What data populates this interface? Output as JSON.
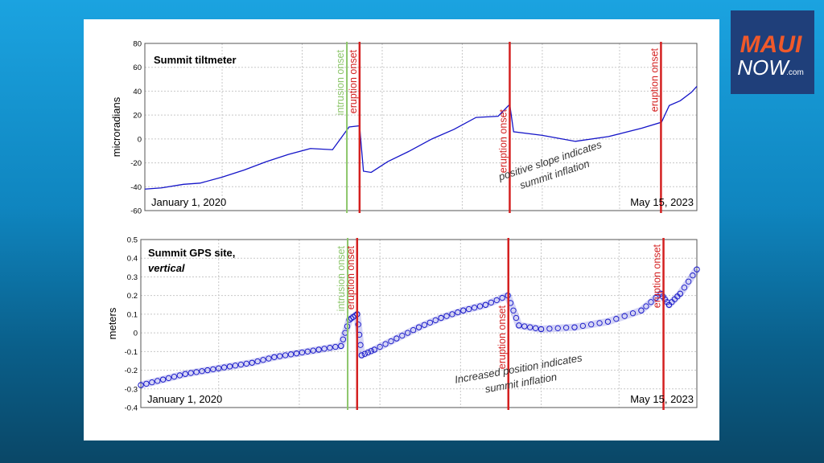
{
  "logo": {
    "line1": "MAUI",
    "line2": "NOW",
    "suffix": ".com",
    "colors": {
      "bg": "#1f3f7a",
      "accent": "#f0592a",
      "text": "#ffffff"
    }
  },
  "colors": {
    "series": "#1414c8",
    "eruption": "#d42020",
    "intrusion": "#8cc66a",
    "grid": "#c8c8c8"
  },
  "chart_data": [
    {
      "type": "line",
      "title": "Summit tiltmeter",
      "ylabel": "microradians",
      "ylim": [
        -60,
        80
      ],
      "yticks": [
        "-60",
        "-40",
        "-20",
        "0",
        "20",
        "40",
        "60",
        "80"
      ],
      "grid": true,
      "x_start_label": "January 1, 2020",
      "x_end_label": "May 15, 2023",
      "series": [
        {
          "x": [
            0,
            0.03,
            0.07,
            0.1,
            0.14,
            0.18,
            0.22,
            0.26,
            0.3,
            0.34,
            0.37,
            0.389,
            0.396,
            0.41,
            0.44,
            0.48,
            0.52,
            0.56,
            0.6,
            0.64,
            0.661,
            0.668,
            0.72,
            0.78,
            0.84,
            0.9,
            0.936,
            0.95,
            0.97,
            0.99,
            1.0
          ],
          "y": [
            -42,
            -41,
            -38,
            -37,
            -32,
            -26,
            -19,
            -13,
            -8,
            -9,
            10,
            11,
            -27,
            -28,
            -19,
            -10,
            0,
            8,
            18,
            19,
            29,
            6,
            3,
            -2,
            2,
            9,
            14,
            28,
            32,
            39,
            44
          ]
        }
      ],
      "events": [
        {
          "label": "intrusion onset",
          "x": 0.366,
          "kind": "intrusion"
        },
        {
          "label": "eruption onset",
          "x": 0.389,
          "kind": "eruption"
        },
        {
          "label": "eruption onset",
          "x": 0.661,
          "kind": "eruption"
        },
        {
          "label": "eruption onset",
          "x": 0.935,
          "kind": "eruption"
        }
      ],
      "annotation": [
        "positive slope indicates",
        "summit inflation"
      ]
    },
    {
      "type": "scatter",
      "title_line1": "Summit GPS site,",
      "title_line2": "vertical",
      "ylabel": "meters",
      "ylim": [
        -0.4,
        0.5
      ],
      "yticks": [
        "-0.4",
        "-0.3",
        "-0.2",
        "-0.1",
        "0",
        "0.1",
        "0.2",
        "0.3",
        "0.4",
        "0.5"
      ],
      "grid": true,
      "x_start_label": "January 1, 2020",
      "x_end_label": "May 15, 2023",
      "series": [
        {
          "x": [
            0,
            0.04,
            0.08,
            0.12,
            0.16,
            0.2,
            0.24,
            0.28,
            0.32,
            0.36,
            0.375,
            0.389,
            0.397,
            0.42,
            0.46,
            0.5,
            0.54,
            0.58,
            0.62,
            0.66,
            0.68,
            0.72,
            0.78,
            0.84,
            0.9,
            0.935,
            0.95,
            0.97,
            1.0
          ],
          "y": [
            -0.28,
            -0.25,
            -0.22,
            -0.2,
            -0.18,
            -0.16,
            -0.13,
            -0.11,
            -0.09,
            -0.07,
            0.07,
            0.1,
            -0.12,
            -0.09,
            -0.03,
            0.03,
            0.08,
            0.12,
            0.15,
            0.2,
            0.04,
            0.02,
            0.03,
            0.06,
            0.12,
            0.21,
            0.15,
            0.21,
            0.34
          ]
        }
      ],
      "events": [
        {
          "label": "intrusion onset",
          "x": 0.372,
          "kind": "intrusion"
        },
        {
          "label": "eruption onset",
          "x": 0.389,
          "kind": "eruption"
        },
        {
          "label": "eruption onset",
          "x": 0.661,
          "kind": "eruption"
        },
        {
          "label": "eruption onset",
          "x": 0.94,
          "kind": "eruption"
        }
      ],
      "annotation": [
        "Increased position indicates",
        "summit inflation"
      ]
    }
  ]
}
